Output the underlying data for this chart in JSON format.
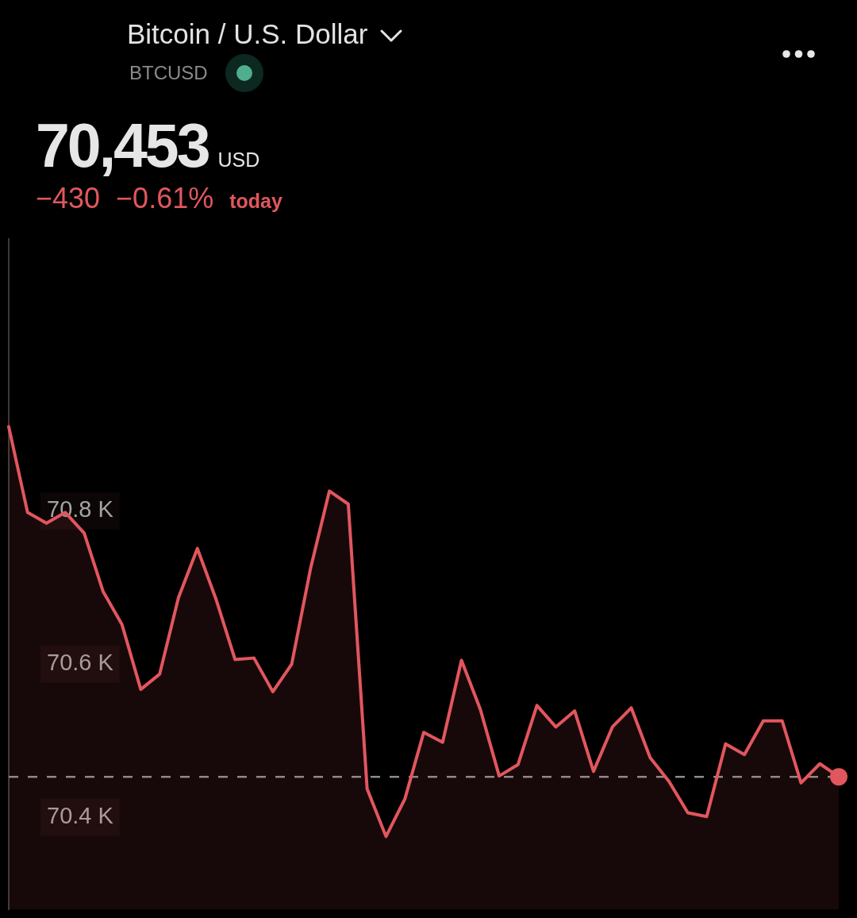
{
  "chart_data": {
    "type": "area",
    "title": "Bitcoin / U.S. Dollar",
    "subtitle": "BTCUSD",
    "annotations": [
      "70,453",
      "USD",
      "−430",
      "−0.61%",
      "today"
    ],
    "categories": [
      null,
      null,
      null,
      null,
      null,
      null,
      null,
      null,
      null,
      null,
      null,
      null,
      null,
      null,
      null,
      null,
      null,
      null,
      null,
      null,
      null,
      null,
      null,
      null,
      null,
      null,
      null,
      null,
      null,
      null,
      null,
      null,
      null,
      null,
      null,
      null,
      null,
      null,
      null,
      null,
      null,
      null,
      null,
      null,
      null
    ],
    "series": [
      {
        "color": "#e2565e",
        "values": [
          70910,
          70798,
          70784,
          70798,
          70771,
          70695,
          70652,
          70567,
          70587,
          70687,
          70751,
          70684,
          70606,
          70608,
          70564,
          70600,
          70725,
          70826,
          70809,
          70437,
          70375,
          70424,
          70511,
          70498,
          70605,
          70541,
          70454,
          70469,
          70546,
          70518,
          70539,
          70460,
          70518,
          70543,
          70478,
          70447,
          70406,
          70401,
          70496,
          70482,
          70526,
          70526,
          70445,
          70470,
          70453
        ]
      },
      {
        "type": "scatter",
        "color": "#e2565e",
        "marker": "circle",
        "values": [
          null,
          null,
          null,
          null,
          null,
          null,
          null,
          null,
          null,
          null,
          null,
          null,
          null,
          null,
          null,
          null,
          null,
          null,
          null,
          null,
          null,
          null,
          null,
          null,
          null,
          null,
          null,
          null,
          null,
          null,
          null,
          null,
          null,
          null,
          null,
          null,
          null,
          null,
          null,
          null,
          null,
          null,
          null,
          null,
          70453
        ]
      }
    ],
    "ylim": [
      70280,
      71155
    ],
    "yticks": [
      {
        "value": 70400,
        "label": "70.4 K"
      },
      {
        "value": 70600,
        "label": "70.6 K"
      },
      {
        "value": 70800,
        "label": "70.8 K"
      }
    ],
    "ref_lines": [
      {
        "axis": "y",
        "value": 70453,
        "color": "#8c8c8c",
        "line_style": "dashed"
      }
    ],
    "marker": "none",
    "tick_labels": "y"
  }
}
